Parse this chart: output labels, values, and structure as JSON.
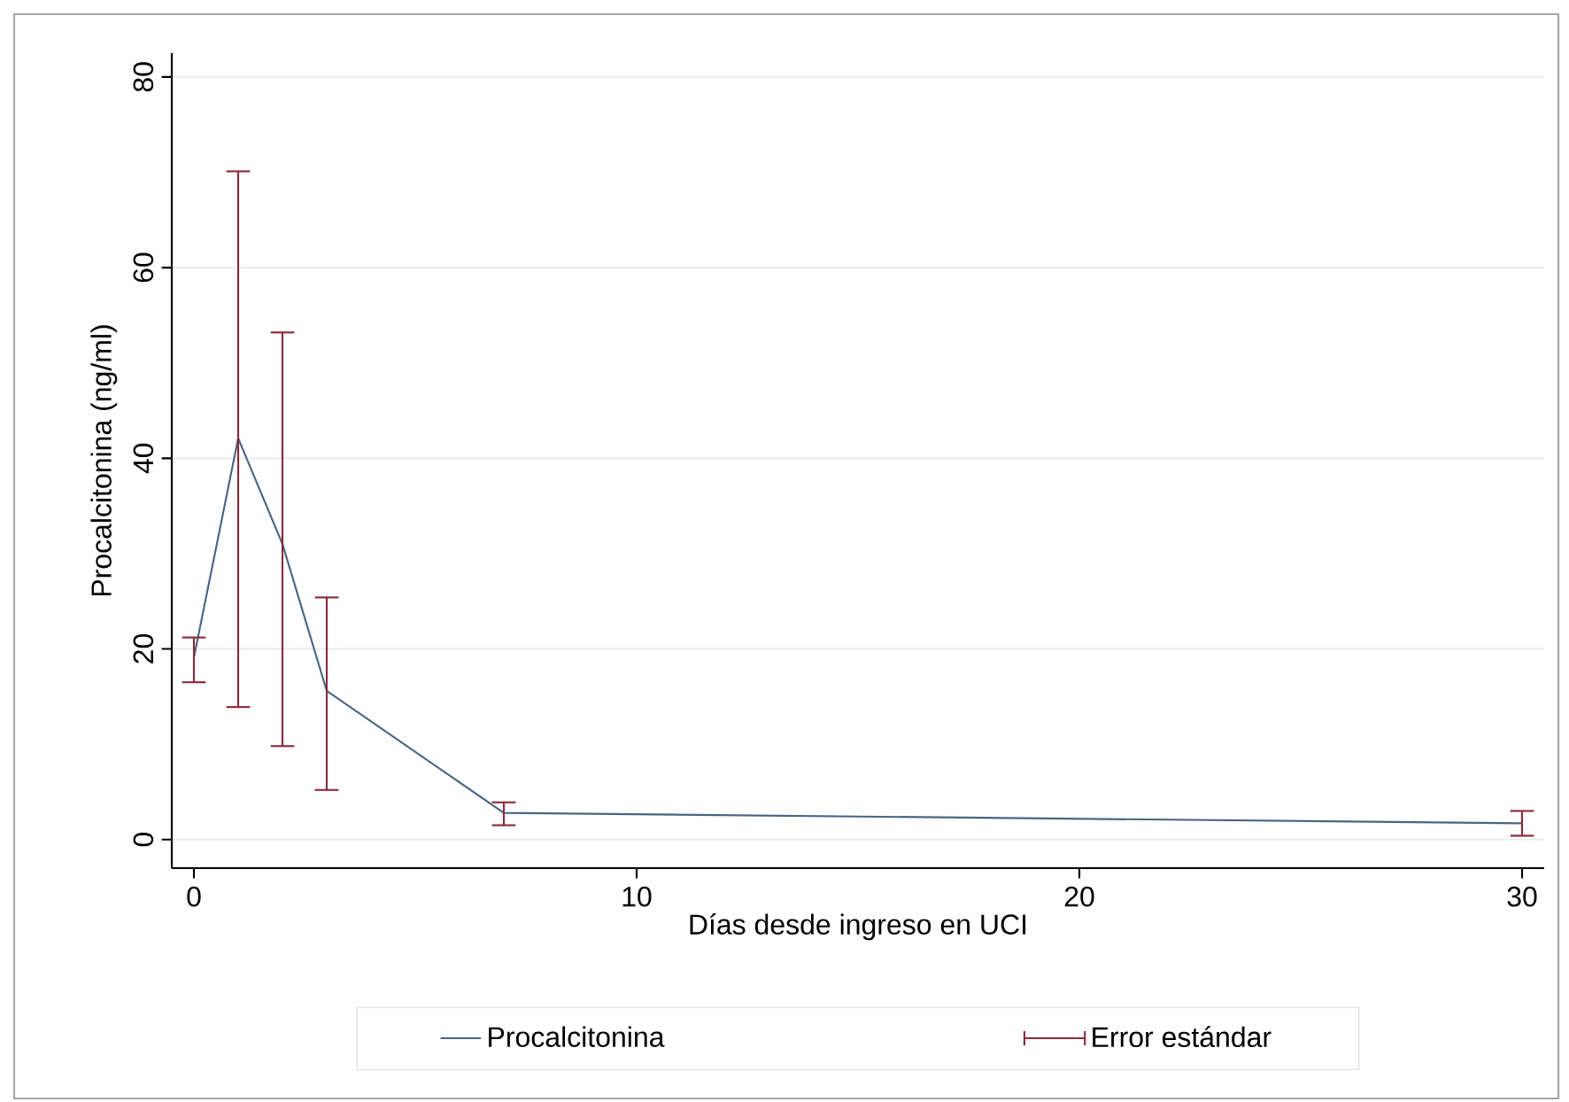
{
  "chart_data": {
    "type": "line",
    "xlabel": "Días desde ingreso en UCI",
    "ylabel": "Procalcitonina (ng/ml)",
    "x": [
      0,
      1,
      2,
      3,
      7,
      30
    ],
    "series": [
      {
        "name": "Procalcitonina",
        "color": "#4a6585",
        "values": [
          19.1,
          42.1,
          31,
          15.6,
          2.8,
          1.7
        ],
        "errors": [
          [
            16.5,
            21.2
          ],
          [
            13.9,
            70.1
          ],
          [
            9.8,
            53.2
          ],
          [
            5.2,
            25.4
          ],
          [
            1.5,
            3.9
          ],
          [
            0.4,
            3.0
          ]
        ]
      }
    ],
    "annotations": [
      "Error estándar"
    ],
    "xlim": [
      -0.5,
      30.5
    ],
    "ylim": [
      -3,
      82.5
    ],
    "xticks": [
      0,
      10,
      20,
      30
    ],
    "yticks": [
      0,
      20,
      40,
      60,
      80
    ],
    "grid": "y",
    "legend": "bottom"
  }
}
